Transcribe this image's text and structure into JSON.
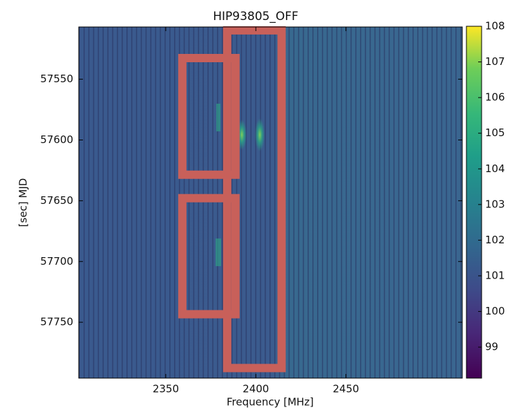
{
  "chart_data": {
    "type": "heatmap",
    "title": "HIP93805_OFF",
    "x_label": "Frequency [MHz]",
    "y_label": "[sec]  MJD",
    "xlim": [
      2301.7,
      2514.6
    ],
    "xticks": [
      2350,
      2400,
      2450
    ],
    "ylim": [
      57507,
      57796
    ],
    "y_inverted": true,
    "yticks": [
      57550,
      57600,
      57650,
      57700,
      57750
    ],
    "clim": [
      98.13,
      108.0
    ],
    "cticks": [
      99,
      100,
      101,
      102,
      103,
      104,
      105,
      106,
      107,
      108
    ],
    "colormap": "viridis",
    "highlight_color": "#c8605a",
    "highlights": [
      {
        "x": [
          2359.2,
          2388.7
        ],
        "y": [
          57532.6,
          57628.6
        ]
      },
      {
        "x": [
          2359.2,
          2388.7
        ],
        "y": [
          57647.9,
          57743.4
        ]
      },
      {
        "x": [
          2384.1,
          2414.3
        ],
        "y": [
          57509.8,
          57787.7
        ]
      }
    ]
  }
}
